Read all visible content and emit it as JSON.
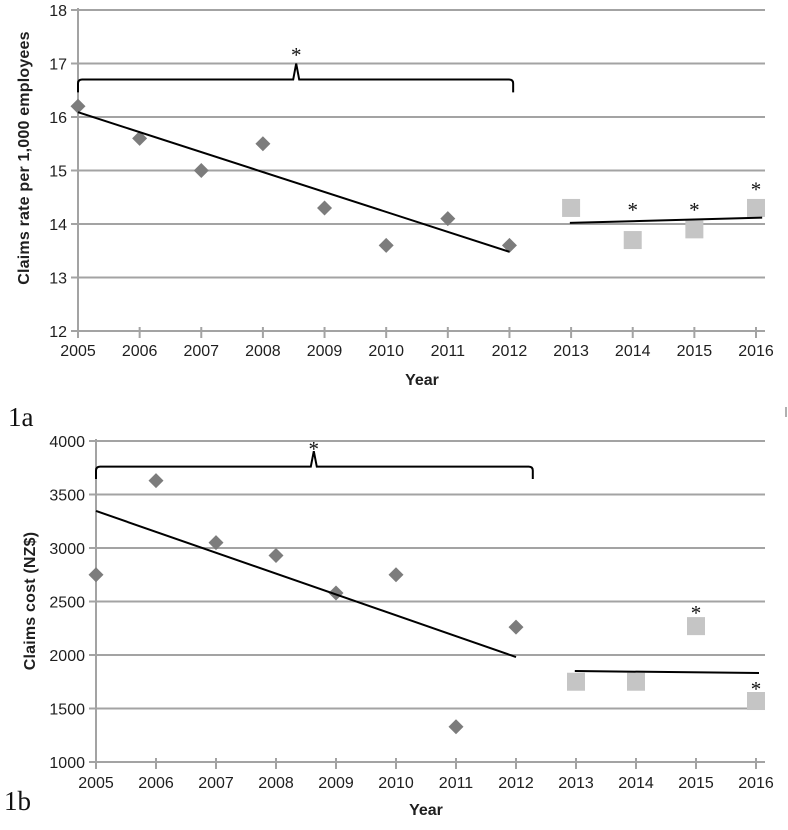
{
  "figure": {
    "description_text": ""
  },
  "chart_data": [
    {
      "id": "claims-rate",
      "panel_label": "1a",
      "type": "scatter",
      "xlabel": "Year",
      "ylabel": "Claims rate per 1,000 employees",
      "ylim": [
        12,
        18
      ],
      "yticks": [
        12,
        13,
        14,
        15,
        16,
        17,
        18
      ],
      "xticks": [
        2005,
        2006,
        2007,
        2008,
        2009,
        2010,
        2011,
        2012,
        2013,
        2014,
        2015,
        2016
      ],
      "grid": true,
      "star_glyph": "*",
      "colors": {
        "grid": "#a3a3a3",
        "axis": "#a3a3a3",
        "line": "#000000",
        "text": "#1f1f1f"
      },
      "series": [
        {
          "name": "claims-rate-2005-2012",
          "marker": "diamond",
          "color": "#7c7c7c",
          "points": [
            [
              2005,
              16.2
            ],
            [
              2006,
              15.6
            ],
            [
              2007,
              15.0
            ],
            [
              2008,
              15.5
            ],
            [
              2009,
              14.3
            ],
            [
              2010,
              13.6
            ],
            [
              2011,
              14.1
            ],
            [
              2012,
              13.6
            ]
          ]
        },
        {
          "name": "claims-rate-2013-2016",
          "marker": "square",
          "color": "#c5c5c5",
          "points": [
            [
              2013,
              14.3
            ],
            [
              2014,
              13.7
            ],
            [
              2015,
              13.9
            ],
            [
              2016,
              14.3
            ]
          ]
        }
      ],
      "trendlines": [
        {
          "name": "trend-2005-2012",
          "x1": 2005,
          "v1": 16.09,
          "x2": 2012.0,
          "v2": 13.48
        },
        {
          "name": "trend-2013-2016",
          "x1": 2012.98,
          "v1": 14.02,
          "x2": 2016.1,
          "v2": 14.12
        }
      ],
      "significance_bracket": {
        "x1": 2005,
        "x2": 2012.06,
        "line_value": 16.7,
        "end_drop": 0.24,
        "notch_x": 2008.54,
        "notch_value": 17.0,
        "star_x": 2008.54,
        "star_value": 17.2,
        "star": "*"
      },
      "point_stars": [
        {
          "x": 2014,
          "value": 14.3
        },
        {
          "x": 2015,
          "value": 14.3
        },
        {
          "x": 2016,
          "value": 14.68
        }
      ]
    },
    {
      "id": "claims-cost",
      "panel_label": "1b",
      "type": "scatter",
      "xlabel": "Year",
      "ylabel": "Claims cost (NZ$)",
      "ylim": [
        1000,
        4000
      ],
      "yticks": [
        1000,
        1500,
        2000,
        2500,
        3000,
        3500,
        4000
      ],
      "xticks": [
        2005,
        2006,
        2007,
        2008,
        2009,
        2010,
        2011,
        2012,
        2013,
        2014,
        2015,
        2016
      ],
      "grid": true,
      "star_glyph": "*",
      "colors": {
        "grid": "#a3a3a3",
        "axis": "#a3a3a3",
        "line": "#000000",
        "text": "#1f1f1f"
      },
      "series": [
        {
          "name": "claims-cost-2005-2012",
          "marker": "diamond",
          "color": "#7c7c7c",
          "points": [
            [
              2005,
              2750
            ],
            [
              2006,
              3630
            ],
            [
              2007,
              3050
            ],
            [
              2008,
              2930
            ],
            [
              2009,
              2580
            ],
            [
              2010,
              2750
            ],
            [
              2011,
              1330
            ],
            [
              2012,
              2260
            ]
          ]
        },
        {
          "name": "claims-cost-2013-2016",
          "marker": "square",
          "color": "#c5c5c5",
          "points": [
            [
              2013,
              1750
            ],
            [
              2014,
              1750
            ],
            [
              2015,
              2270
            ],
            [
              2016,
              1570
            ]
          ]
        }
      ],
      "trendlines": [
        {
          "name": "trend-2005-2012",
          "x1": 2005,
          "v1": 3346,
          "x2": 2012.0,
          "v2": 1981
        },
        {
          "name": "trend-2013-2016",
          "x1": 2012.98,
          "v1": 1850,
          "x2": 2016.05,
          "v2": 1832
        }
      ],
      "significance_bracket": {
        "x1": 2005,
        "x2": 2012.28,
        "line_value": 3760,
        "end_drop": 115,
        "notch_x": 2008.63,
        "notch_value": 3905,
        "star_x": 2008.63,
        "star_value": 3945,
        "star": "*"
      },
      "point_stars": [
        {
          "x": 2015,
          "value": 2410
        },
        {
          "x": 2016,
          "value": 1700
        }
      ]
    }
  ]
}
